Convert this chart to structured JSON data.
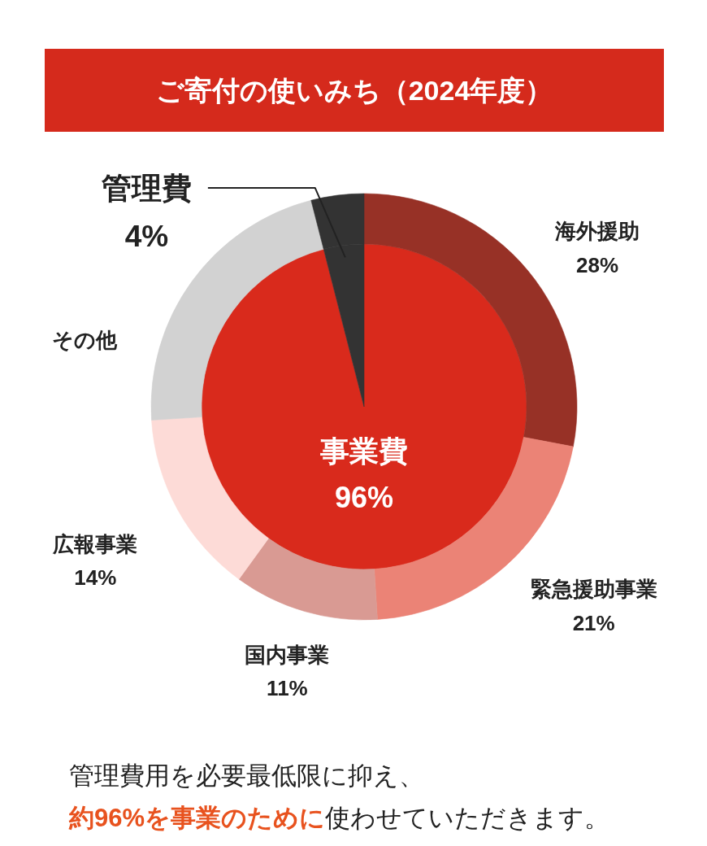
{
  "chart_data": [
    {
      "type": "pie",
      "title": "ご寄付の使いみち（2024年度）",
      "categories": [
        "事業費",
        "管理費"
      ],
      "values": [
        96,
        4
      ],
      "colors": [
        "#d92a1c",
        "#333333"
      ],
      "value_labels": [
        "96%",
        "4%"
      ],
      "annotations": [
        "管理費用を必要最低限に抑え、",
        "約96%を事業のために",
        "使わせていただきます。"
      ]
    },
    {
      "type": "donut",
      "categories": [
        "海外援助",
        "緊急援助事業",
        "国内事業",
        "広報事業",
        "その他",
        null
      ],
      "values": [
        28,
        21,
        11,
        14,
        22,
        4
      ],
      "colors": [
        "#973126",
        "#eb8376",
        "#d99a93",
        "#fddbd7",
        "#d2d2d2",
        "#333333"
      ],
      "value_labels": [
        "28%",
        "21%",
        "11%",
        "14%",
        null,
        null
      ]
    }
  ]
}
